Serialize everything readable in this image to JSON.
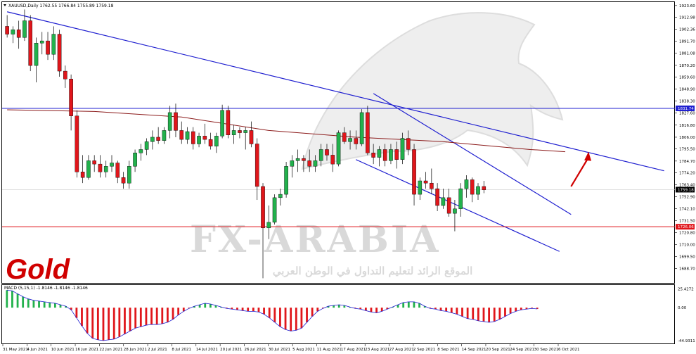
{
  "header": {
    "title": "XAUUSD,Daily  1762.55 1766.84 1755.89 1759.18",
    "macd_title": "MACD (5,15,1) -1.8146 -1.8146 -1.8146"
  },
  "brand": {
    "gold_label": "Gold",
    "watermark": "FX-ARABIA",
    "watermark_arabic": "الموقع الرائد لتعليم التداول في الوطن العربي"
  },
  "colors": {
    "bull": "#22b14c",
    "bear": "#e0161b",
    "trend": "#1f1fd0",
    "ma": "#8b1a1a",
    "support": "#e0161b",
    "arrow": "#d00000",
    "current_price_bg": "#000000"
  },
  "chart_data": [
    {
      "type": "candlestick",
      "symbol": "XAUUSD",
      "timeframe": "Daily",
      "ylim": [
        1676.5,
        1926.0
      ],
      "y_ticks": [
        "1923.60",
        "1912.98",
        "1902.36",
        "1891.70",
        "1881.08",
        "1870.20",
        "1859.60",
        "1848.90",
        "1838.30",
        "1827.60",
        "1816.80",
        "1806.00",
        "1795.50",
        "1784.70",
        "1774.20",
        "1763.40",
        "1752.90",
        "1742.10",
        "1731.50",
        "1720.80",
        "1710.00",
        "1699.50",
        "1688.70"
      ],
      "price_labels": {
        "current": "1759.18",
        "resistance": "1831.74",
        "support": "1726.06"
      },
      "x_labels": [
        "31 May 2021",
        "4 Jun 2021",
        "10 Jun 2021",
        "16 Jun 2021",
        "22 Jun 2021",
        "28 Jun 2021",
        "2 Jul 2021",
        "8 Jul 2021",
        "14 Jul 2021",
        "20 Jul 2021",
        "26 Jul 2021",
        "30 Jul 2021",
        "5 Aug 2021",
        "11 Aug 2021",
        "17 Aug 2021",
        "23 Aug 2021",
        "27 Aug 2021",
        "2 Sep 2021",
        "8 Sep 2021",
        "14 Sep 2021",
        "20 Sep 2021",
        "24 Sep 2021",
        "30 Sep 2021",
        "6 Oct 2021"
      ],
      "candles": [
        [
          1905,
          1915,
          1895,
          1898
        ],
        [
          1898,
          1905,
          1890,
          1902
        ],
        [
          1902,
          1910,
          1885,
          1895
        ],
        [
          1895,
          1920,
          1892,
          1910
        ],
        [
          1910,
          1915,
          1865,
          1870
        ],
        [
          1870,
          1895,
          1855,
          1890
        ],
        [
          1890,
          1900,
          1880,
          1892
        ],
        [
          1892,
          1900,
          1875,
          1880
        ],
        [
          1880,
          1905,
          1875,
          1898
        ],
        [
          1898,
          1902,
          1860,
          1865
        ],
        [
          1865,
          1870,
          1850,
          1858
        ],
        [
          1858,
          1862,
          1812,
          1825
        ],
        [
          1825,
          1830,
          1770,
          1775
        ],
        [
          1775,
          1790,
          1765,
          1770
        ],
        [
          1770,
          1790,
          1768,
          1785
        ],
        [
          1785,
          1790,
          1775,
          1782
        ],
        [
          1782,
          1790,
          1770,
          1775
        ],
        [
          1775,
          1785,
          1770,
          1780
        ],
        [
          1780,
          1790,
          1775,
          1783
        ],
        [
          1783,
          1785,
          1765,
          1770
        ],
        [
          1770,
          1775,
          1760,
          1765
        ],
        [
          1765,
          1785,
          1760,
          1780
        ],
        [
          1780,
          1795,
          1775,
          1792
        ],
        [
          1792,
          1800,
          1785,
          1795
        ],
        [
          1795,
          1805,
          1790,
          1802
        ],
        [
          1802,
          1812,
          1795,
          1806
        ],
        [
          1806,
          1815,
          1800,
          1803
        ],
        [
          1803,
          1815,
          1800,
          1812
        ],
        [
          1812,
          1834,
          1805,
          1828
        ],
        [
          1828,
          1836,
          1806,
          1812
        ],
        [
          1812,
          1820,
          1800,
          1804
        ],
        [
          1804,
          1815,
          1800,
          1811
        ],
        [
          1811,
          1815,
          1795,
          1800
        ],
        [
          1800,
          1810,
          1797,
          1807
        ],
        [
          1807,
          1818,
          1800,
          1804
        ],
        [
          1804,
          1810,
          1795,
          1798
        ],
        [
          1798,
          1810,
          1792,
          1807
        ],
        [
          1807,
          1835,
          1805,
          1830
        ],
        [
          1830,
          1834,
          1805,
          1808
        ],
        [
          1808,
          1817,
          1800,
          1812
        ],
        [
          1812,
          1815,
          1805,
          1810
        ],
        [
          1810,
          1815,
          1795,
          1812
        ],
        [
          1812,
          1820,
          1797,
          1800
        ],
        [
          1800,
          1805,
          1750,
          1762
        ],
        [
          1762,
          1765,
          1680,
          1725
        ],
        [
          1725,
          1745,
          1715,
          1730
        ],
        [
          1730,
          1755,
          1728,
          1752
        ],
        [
          1752,
          1760,
          1745,
          1755
        ],
        [
          1755,
          1784,
          1752,
          1780
        ],
        [
          1780,
          1790,
          1770,
          1785
        ],
        [
          1785,
          1795,
          1775,
          1787
        ],
        [
          1787,
          1790,
          1775,
          1785
        ],
        [
          1785,
          1795,
          1775,
          1780
        ],
        [
          1780,
          1790,
          1775,
          1785
        ],
        [
          1785,
          1800,
          1780,
          1795
        ],
        [
          1795,
          1800,
          1785,
          1790
        ],
        [
          1790,
          1800,
          1775,
          1782
        ],
        [
          1782,
          1812,
          1780,
          1810
        ],
        [
          1810,
          1815,
          1800,
          1802
        ],
        [
          1802,
          1812,
          1795,
          1805
        ],
        [
          1805,
          1812,
          1795,
          1800
        ],
        [
          1800,
          1831,
          1798,
          1828
        ],
        [
          1828,
          1834,
          1790,
          1792
        ],
        [
          1792,
          1800,
          1782,
          1788
        ],
        [
          1788,
          1798,
          1780,
          1795
        ],
        [
          1795,
          1800,
          1780,
          1785
        ],
        [
          1785,
          1800,
          1782,
          1795
        ],
        [
          1795,
          1802,
          1778,
          1786
        ],
        [
          1786,
          1810,
          1782,
          1805
        ],
        [
          1805,
          1812,
          1790,
          1795
        ],
        [
          1795,
          1800,
          1745,
          1755
        ],
        [
          1755,
          1770,
          1750,
          1767
        ],
        [
          1767,
          1775,
          1760,
          1765
        ],
        [
          1765,
          1778,
          1755,
          1760
        ],
        [
          1760,
          1765,
          1740,
          1745
        ],
        [
          1745,
          1760,
          1742,
          1752
        ],
        [
          1752,
          1760,
          1735,
          1738
        ],
        [
          1738,
          1750,
          1722,
          1742
        ],
        [
          1742,
          1765,
          1735,
          1760
        ],
        [
          1760,
          1772,
          1752,
          1768
        ],
        [
          1768,
          1770,
          1748,
          1755
        ],
        [
          1755,
          1765,
          1750,
          1762
        ],
        [
          1762,
          1767,
          1756,
          1759
        ]
      ],
      "lines": [
        {
          "name": "descending-trendline",
          "from": {
            "bar": 0,
            "price": 1918
          },
          "to": {
            "bar": 113,
            "price": 1776
          }
        },
        {
          "name": "channel-upper",
          "from": {
            "bar": 63,
            "price": 1845
          },
          "to": {
            "bar": 97,
            "price": 1737
          }
        },
        {
          "name": "channel-lower",
          "from": {
            "bar": 60,
            "price": 1786
          },
          "to": {
            "bar": 95,
            "price": 1704
          }
        },
        {
          "name": "horizontal-resistance",
          "price": 1831.74
        },
        {
          "name": "horizontal-support",
          "price": 1726.06
        }
      ],
      "ma": {
        "name": "moving-average",
        "points": [
          [
            0,
            1830.5
          ],
          [
            15,
            1829
          ],
          [
            30,
            1824
          ],
          [
            45,
            1812
          ],
          [
            60,
            1806
          ],
          [
            75,
            1802
          ],
          [
            90,
            1795
          ],
          [
            96,
            1793
          ]
        ]
      },
      "arrow": {
        "from": {
          "bar": 97,
          "price": 1762
        },
        "to": {
          "bar": 100,
          "price": 1793
        }
      }
    },
    {
      "type": "bar",
      "name": "MACD",
      "ylim": [
        -48,
        30
      ],
      "y_ticks": [
        "25.4272",
        "0.00",
        "-44.9311"
      ],
      "values": [
        24,
        23,
        19,
        15,
        12,
        10,
        9,
        8,
        7,
        6,
        4,
        2,
        -3,
        -14,
        -25,
        -35,
        -42,
        -44,
        -45,
        -44,
        -43,
        -40,
        -36,
        -32,
        -28,
        -26,
        -24,
        -23,
        -23,
        -22,
        -20,
        -16,
        -10,
        -5,
        -1,
        2,
        4,
        6,
        5,
        3,
        1,
        -1,
        -2,
        -3,
        -4,
        -5,
        -5,
        -6,
        -9,
        -14,
        -20,
        -26,
        -30,
        -32,
        -31,
        -28,
        -20,
        -12,
        -5,
        -1,
        2,
        3,
        4,
        3,
        1,
        -1,
        -2,
        -4,
        -6,
        -7,
        -5,
        -2,
        1,
        4,
        7,
        8,
        8,
        6,
        2,
        -1,
        -2,
        -4,
        -5,
        -7,
        -9,
        -12,
        -15,
        -16,
        -18,
        -19,
        -20,
        -19,
        -16,
        -12,
        -8,
        -5,
        -3,
        -2,
        -1,
        -1.8
      ]
    }
  ]
}
